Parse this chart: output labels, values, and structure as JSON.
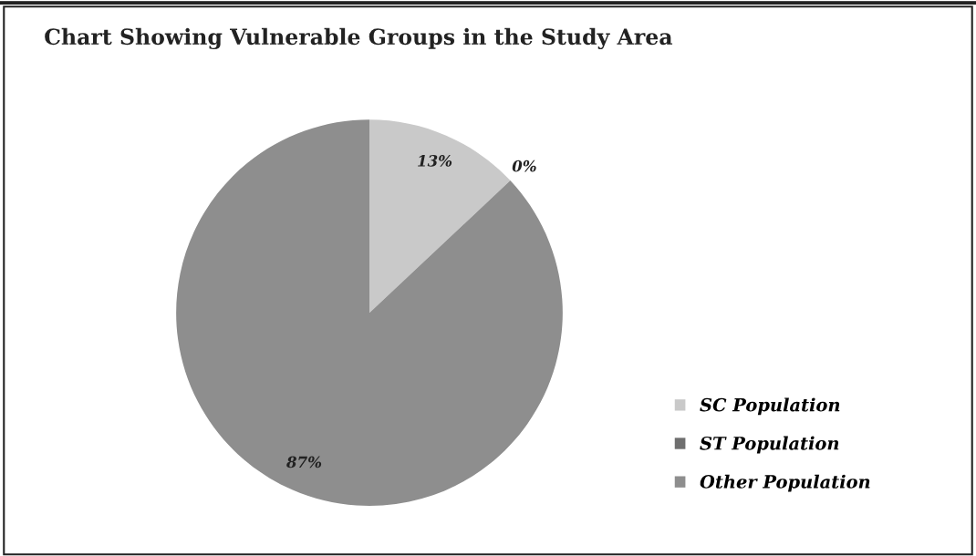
{
  "chart_data": {
    "type": "pie",
    "title": "Chart Showing Vulnerable Groups in the Study Area",
    "categories": [
      "SC Population",
      "ST Population",
      "Other Population"
    ],
    "values": [
      13,
      0,
      87
    ],
    "colors": [
      "#c9c9c9",
      "#6f6f6f",
      "#8e8e8e"
    ],
    "value_labels": [
      "13%",
      "0%",
      "87%"
    ],
    "legend": "right"
  }
}
